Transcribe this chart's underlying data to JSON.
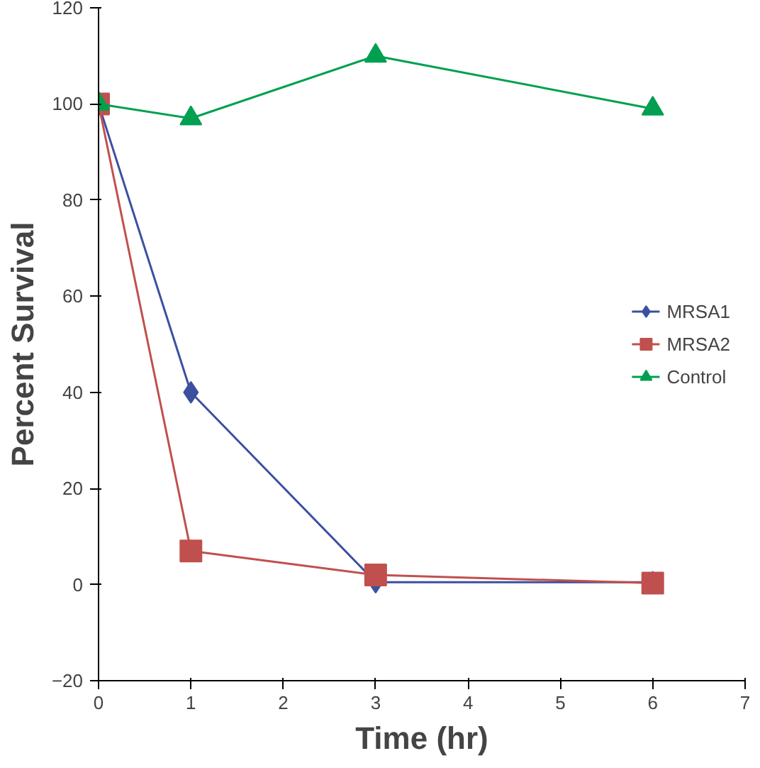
{
  "chart_data": {
    "type": "line",
    "xlabel": "Time (hr)",
    "ylabel": "Percent Survival",
    "xlim": [
      0,
      7
    ],
    "xticks": [
      0,
      1,
      2,
      3,
      4,
      5,
      6,
      7
    ],
    "ylim": [
      -20,
      120
    ],
    "yticks": [
      -20,
      0,
      20,
      40,
      60,
      80,
      100,
      120
    ],
    "grid": false,
    "legend": "right",
    "line_style": "solid",
    "x": [
      0,
      1,
      3,
      6
    ],
    "series": [
      {
        "name": "MRSA1",
        "color": "#3c50a0",
        "marker": "diamond",
        "values": [
          100,
          40,
          0.5,
          0.5
        ]
      },
      {
        "name": "MRSA2",
        "color": "#c0504d",
        "marker": "square",
        "values": [
          100,
          7,
          2,
          0.3
        ]
      },
      {
        "name": "Control",
        "color": "#00a050",
        "marker": "triangle",
        "values": [
          100,
          97,
          110,
          99
        ]
      }
    ]
  }
}
